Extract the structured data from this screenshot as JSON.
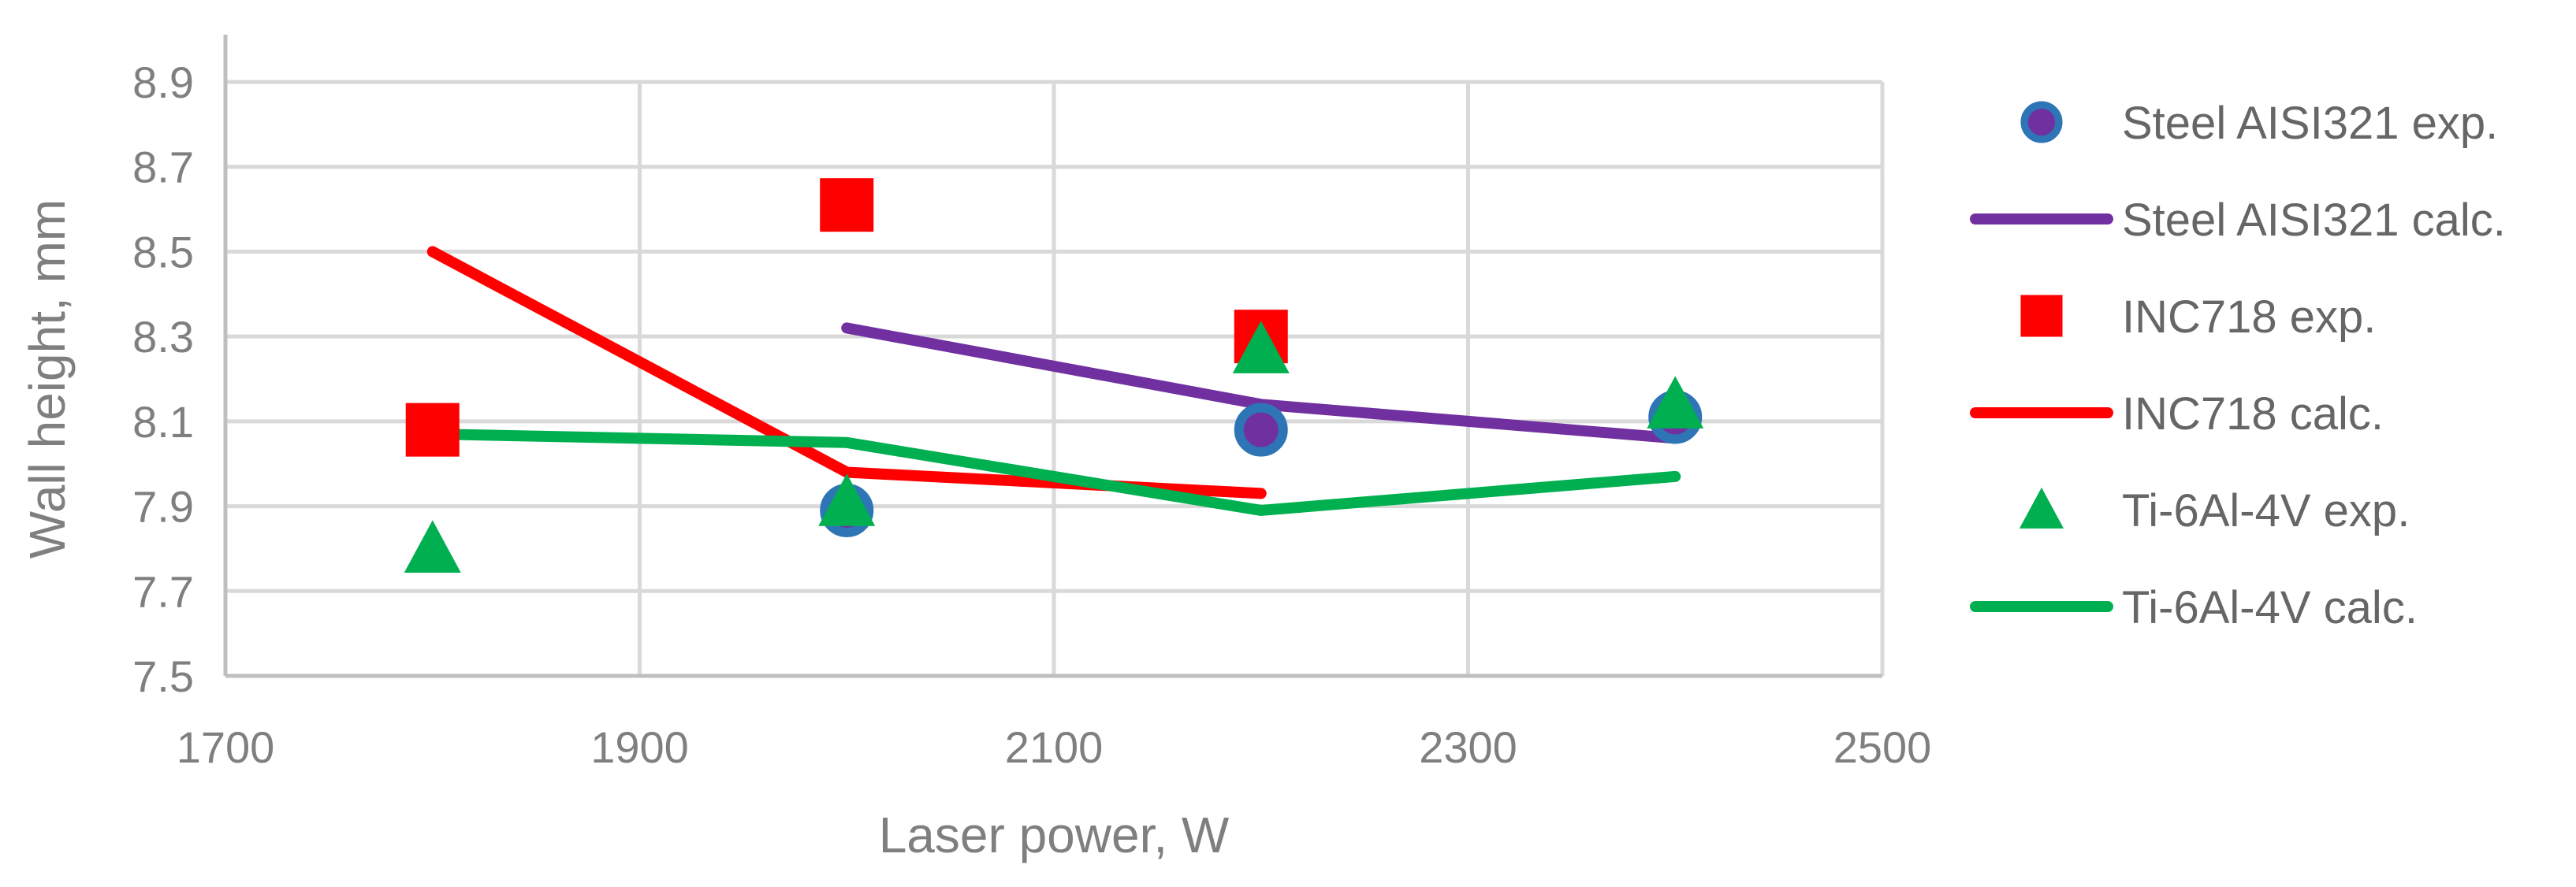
{
  "chart_data": {
    "type": "scatter",
    "xlabel": "Laser power, W",
    "ylabel": "Wall height, mm",
    "xlim": [
      1700,
      2500
    ],
    "ylim": [
      7.5,
      8.9
    ],
    "x_ticks": [
      "1700",
      "1900",
      "2100",
      "2300",
      "2500"
    ],
    "y_ticks": [
      "7.5",
      "7.7",
      "7.9",
      "8.1",
      "8.3",
      "8.5",
      "8.7",
      "8.9"
    ],
    "grid": true,
    "legend_position": "right",
    "series": [
      {
        "name": "Steel AISI321 exp.",
        "kind": "marker",
        "marker": "circle",
        "color": "#7030a0",
        "edge_color": "#2e75b6",
        "points": [
          [
            2000,
            7.89
          ],
          [
            2200,
            8.08
          ],
          [
            2400,
            8.11
          ]
        ]
      },
      {
        "name": "Steel AISI321 calc.",
        "kind": "line",
        "color": "#7030a0",
        "points": [
          [
            2000,
            8.32
          ],
          [
            2200,
            8.14
          ],
          [
            2400,
            8.06
          ]
        ]
      },
      {
        "name": "INC718 exp.",
        "kind": "marker",
        "marker": "square",
        "color": "#ff0000",
        "points": [
          [
            1800,
            8.08
          ],
          [
            2000,
            8.61
          ],
          [
            2200,
            8.3
          ]
        ]
      },
      {
        "name": "INC718 calc.",
        "kind": "line",
        "color": "#ff0000",
        "points": [
          [
            1800,
            8.5
          ],
          [
            2000,
            7.98
          ],
          [
            2200,
            7.93
          ]
        ]
      },
      {
        "name": "Ti-6Al-4V exp.",
        "kind": "marker",
        "marker": "triangle",
        "color": "#00b050",
        "points": [
          [
            1800,
            7.8
          ],
          [
            2000,
            7.91
          ],
          [
            2200,
            8.27
          ],
          [
            2400,
            8.14
          ]
        ]
      },
      {
        "name": "Ti-6Al-4V calc.",
        "kind": "line",
        "color": "#00b050",
        "points": [
          [
            1800,
            8.07
          ],
          [
            2000,
            8.05
          ],
          [
            2200,
            7.89
          ],
          [
            2400,
            7.97
          ]
        ]
      }
    ]
  }
}
